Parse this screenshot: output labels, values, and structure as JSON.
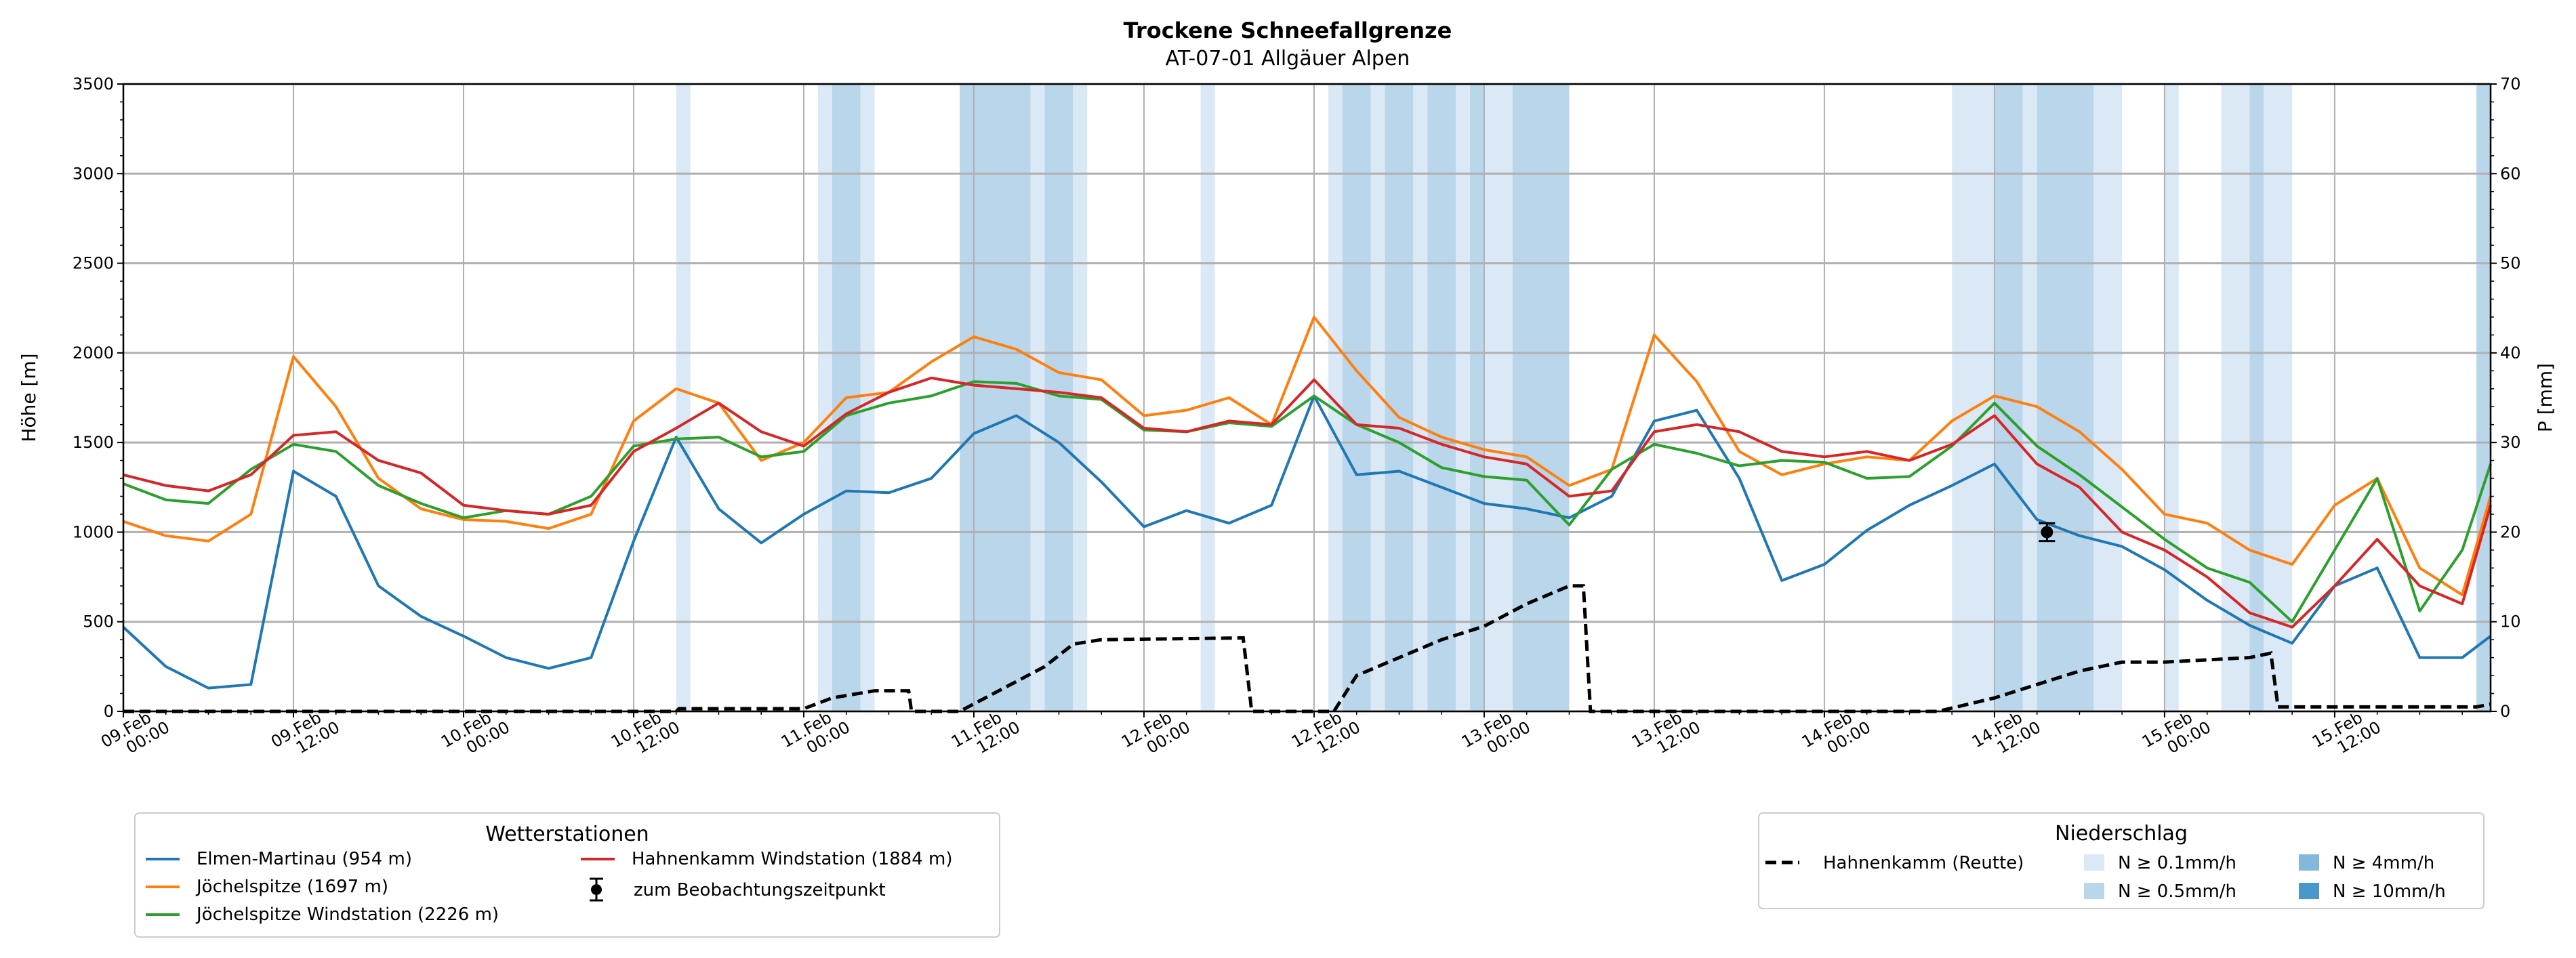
{
  "chart_data": {
    "type": "line",
    "title": "Trockene Schneefallgrenze",
    "subtitle": "AT-07-01 Allgäuer Alpen",
    "ylabel": "Höhe [m]",
    "y2label": "P [mm]",
    "ylim": [
      0,
      3500
    ],
    "y2lim": [
      0,
      70
    ],
    "xlim_hours": [
      0,
      167
    ],
    "grid": true,
    "yticks": [
      "0",
      "500",
      "1000",
      "1500",
      "2000",
      "2500",
      "3000",
      "3500"
    ],
    "y2ticks": [
      "0",
      "10",
      "20",
      "30",
      "40",
      "50",
      "60",
      "70"
    ],
    "xticks": [
      [
        "09.Feb",
        "00:00"
      ],
      [
        "09.Feb",
        "12:00"
      ],
      [
        "10.Feb",
        "00:00"
      ],
      [
        "10.Feb",
        "12:00"
      ],
      [
        "11.Feb",
        "00:00"
      ],
      [
        "11.Feb",
        "12:00"
      ],
      [
        "12.Feb",
        "00:00"
      ],
      [
        "12.Feb",
        "12:00"
      ],
      [
        "13.Feb",
        "00:00"
      ],
      [
        "13.Feb",
        "12:00"
      ],
      [
        "14.Feb",
        "00:00"
      ],
      [
        "14.Feb",
        "12:00"
      ],
      [
        "15.Feb",
        "00:00"
      ],
      [
        "15.Feb",
        "12:00"
      ]
    ],
    "x_hours": [
      0,
      3,
      6,
      9,
      12,
      15,
      18,
      21,
      24,
      27,
      30,
      33,
      36,
      39,
      42,
      45,
      48,
      51,
      54,
      57,
      60,
      63,
      66,
      69,
      72,
      75,
      78,
      81,
      84,
      87,
      90,
      93,
      96,
      99,
      102,
      105,
      108,
      111,
      114,
      117,
      120,
      123,
      126,
      129,
      132,
      135,
      138,
      141,
      144,
      147,
      150,
      153,
      156,
      159,
      162,
      165,
      167
    ],
    "series": [
      {
        "name": "Elmen-Martinau (954 m)",
        "color": "#1f77b4",
        "values": [
          470,
          250,
          130,
          150,
          1340,
          1200,
          700,
          530,
          420,
          300,
          240,
          300,
          950,
          1530,
          1130,
          940,
          1100,
          1230,
          1220,
          1300,
          1550,
          1650,
          1500,
          1280,
          1030,
          1120,
          1050,
          1150,
          1760,
          1320,
          1340,
          1250,
          1160,
          1130,
          1080,
          1200,
          1620,
          1680,
          1300,
          730,
          820,
          1010,
          1150,
          1260,
          1380,
          1070,
          980,
          920,
          790,
          620,
          480,
          380,
          700,
          800,
          300,
          300,
          420
        ]
      },
      {
        "name": "Jöchelspitze (1697 m)",
        "color": "#ff7f0e",
        "values": [
          1060,
          980,
          950,
          1100,
          1980,
          1700,
          1300,
          1130,
          1070,
          1060,
          1020,
          1100,
          1620,
          1800,
          1720,
          1400,
          1500,
          1750,
          1780,
          1950,
          2090,
          2020,
          1890,
          1850,
          1650,
          1680,
          1750,
          1600,
          2200,
          1900,
          1640,
          1530,
          1460,
          1420,
          1260,
          1350,
          2100,
          1840,
          1450,
          1320,
          1380,
          1420,
          1400,
          1620,
          1760,
          1700,
          1560,
          1350,
          1100,
          1050,
          900,
          820,
          1150,
          1300,
          800,
          650,
          1200
        ]
      },
      {
        "name": "Jöchelspitze Windstation (2226 m)",
        "color": "#2ca02c",
        "values": [
          1270,
          1180,
          1160,
          1350,
          1490,
          1450,
          1260,
          1160,
          1080,
          1120,
          1100,
          1200,
          1480,
          1520,
          1530,
          1420,
          1450,
          1650,
          1720,
          1760,
          1840,
          1830,
          1760,
          1740,
          1570,
          1560,
          1610,
          1590,
          1760,
          1600,
          1500,
          1360,
          1310,
          1290,
          1040,
          1350,
          1490,
          1440,
          1370,
          1400,
          1390,
          1300,
          1310,
          1480,
          1720,
          1480,
          1320,
          1140,
          960,
          800,
          720,
          500,
          900,
          1300,
          560,
          900,
          1380
        ]
      },
      {
        "name": "Hahnenkamm Windstation (1884 m)",
        "color": "#d62728",
        "values": [
          1320,
          1260,
          1230,
          1320,
          1540,
          1560,
          1400,
          1330,
          1150,
          1120,
          1100,
          1150,
          1450,
          1580,
          1720,
          1560,
          1480,
          1660,
          1780,
          1860,
          1820,
          1800,
          1780,
          1750,
          1580,
          1560,
          1620,
          1600,
          1850,
          1600,
          1580,
          1490,
          1420,
          1380,
          1200,
          1230,
          1560,
          1600,
          1560,
          1450,
          1420,
          1450,
          1400,
          1490,
          1650,
          1380,
          1250,
          1000,
          900,
          750,
          550,
          470,
          700,
          960,
          700,
          600,
          1150
        ]
      }
    ],
    "observation": {
      "label": "zum Beobachtungszeitpunkt",
      "hour": 135.7,
      "value": 1000,
      "error": 50
    },
    "precip_series": {
      "name": "Hahnenkamm (Reutte)",
      "hours": [
        0,
        39,
        39.2,
        48,
        50,
        53,
        55.4,
        55.6,
        59,
        62,
        65,
        67,
        69,
        79,
        79.6,
        85.4,
        87,
        90,
        93,
        96,
        99,
        102,
        103,
        103.5,
        128,
        132,
        135,
        138,
        141,
        144,
        150,
        151.5,
        152,
        166,
        167
      ],
      "values_mm": [
        0,
        0,
        0.3,
        0.3,
        1.5,
        2.3,
        2.3,
        0,
        0,
        2.5,
        5,
        7.5,
        8,
        8.2,
        0,
        0,
        4,
        6,
        8,
        9.5,
        12,
        14,
        14,
        0,
        0,
        1.5,
        3,
        4.5,
        5.5,
        5.5,
        6,
        6.5,
        0.5,
        0.5,
        0.8
      ]
    },
    "precip_bands": [
      [
        39,
        40,
        0.1
      ],
      [
        49,
        50,
        0.1
      ],
      [
        50,
        52,
        0.5
      ],
      [
        52,
        53,
        0.1
      ],
      [
        59,
        64,
        0.5
      ],
      [
        64,
        65,
        0.1
      ],
      [
        65,
        67,
        0.5
      ],
      [
        67,
        68,
        0.1
      ],
      [
        76,
        77,
        0.1
      ],
      [
        85,
        86,
        0.1
      ],
      [
        86,
        88,
        0.5
      ],
      [
        88,
        89,
        0.1
      ],
      [
        89,
        91,
        0.5
      ],
      [
        91,
        92,
        0.1
      ],
      [
        92,
        94,
        0.5
      ],
      [
        94,
        95,
        0.1
      ],
      [
        95,
        96,
        0.5
      ],
      [
        96,
        98,
        0.1
      ],
      [
        98,
        102,
        0.5
      ],
      [
        129,
        132,
        0.1
      ],
      [
        132,
        134,
        0.5
      ],
      [
        134,
        135,
        0.1
      ],
      [
        135,
        139,
        0.5
      ],
      [
        139,
        141,
        0.1
      ],
      [
        144,
        145,
        0.1
      ],
      [
        148,
        150,
        0.1
      ],
      [
        150,
        151,
        0.5
      ],
      [
        151,
        153,
        0.1
      ],
      [
        166,
        167,
        0.5
      ]
    ],
    "legend_stations": {
      "title": "Wetterstationen"
    },
    "legend_precip": {
      "title": "Niederschlag",
      "levels": [
        {
          "label": "N ≥ 0.1mm/h",
          "threshold": 0.1,
          "color": "#dbe9f6"
        },
        {
          "label": "N ≥ 0.5mm/h",
          "threshold": 0.5,
          "color": "#bad6eb"
        },
        {
          "label": "N ≥ 4mm/h",
          "threshold": 4,
          "color": "#82b9da"
        },
        {
          "label": "N ≥ 10mm/h",
          "threshold": 10,
          "color": "#4a98c9"
        }
      ]
    }
  }
}
